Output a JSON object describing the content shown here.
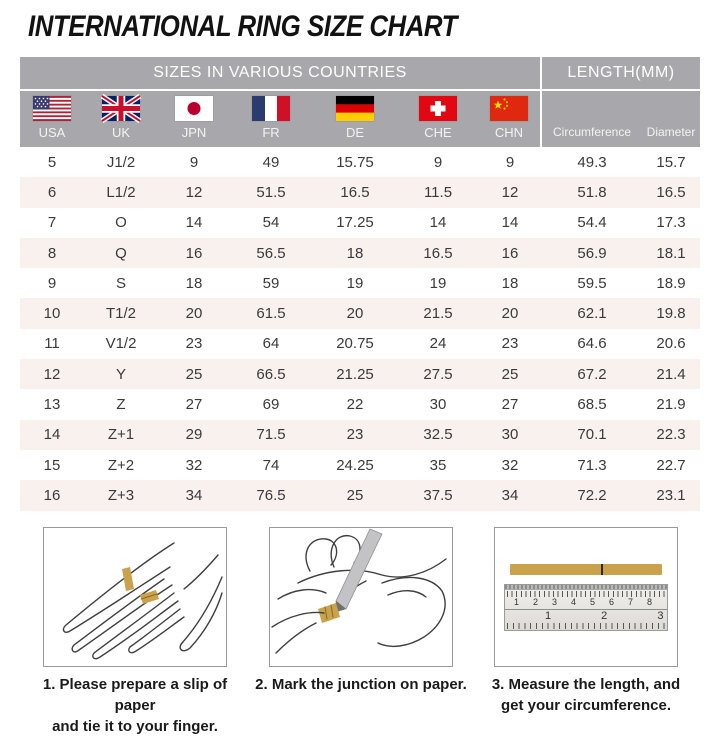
{
  "title": "INTERNATIONAL RING SIZE CHART",
  "table": {
    "header_left": "SIZES IN VARIOUS COUNTRIES",
    "header_right": "LENGTH(MM)",
    "columns": [
      {
        "label": "USA",
        "flag": "usa-flag"
      },
      {
        "label": "UK",
        "flag": "uk-flag"
      },
      {
        "label": "JPN",
        "flag": "japan-flag"
      },
      {
        "label": "FR",
        "flag": "france-flag"
      },
      {
        "label": "DE",
        "flag": "germany-flag"
      },
      {
        "label": "CHE",
        "flag": "switzerland-flag"
      },
      {
        "label": "CHN",
        "flag": "china-flag"
      }
    ],
    "length_columns": [
      {
        "label": "Circumference"
      },
      {
        "label": "Diameter"
      }
    ]
  },
  "chart_data": {
    "type": "table",
    "title": "INTERNATIONAL RING SIZE CHART",
    "columns": [
      "USA",
      "UK",
      "JPN",
      "FR",
      "DE",
      "CHE",
      "CHN",
      "Circumference",
      "Diameter"
    ],
    "rows": [
      [
        5,
        "J1/2",
        9,
        49,
        15.75,
        9,
        9,
        49.3,
        15.7
      ],
      [
        6,
        "L1/2",
        12,
        51.5,
        16.5,
        11.5,
        12,
        51.8,
        16.5
      ],
      [
        7,
        "O",
        14,
        54,
        17.25,
        14,
        14,
        54.4,
        17.3
      ],
      [
        8,
        "Q",
        16,
        56.5,
        18,
        16.5,
        16,
        56.9,
        18.1
      ],
      [
        9,
        "S",
        18,
        59,
        19,
        19,
        18,
        59.5,
        18.9
      ],
      [
        10,
        "T1/2",
        20,
        61.5,
        20,
        21.5,
        20,
        62.1,
        19.8
      ],
      [
        11,
        "V1/2",
        23,
        64,
        20.75,
        24,
        23,
        64.6,
        20.6
      ],
      [
        12,
        "Y",
        25,
        66.5,
        21.25,
        27.5,
        25,
        67.2,
        21.4
      ],
      [
        13,
        "Z",
        27,
        69,
        22,
        30,
        27,
        68.5,
        21.9
      ],
      [
        14,
        "Z+1",
        29,
        71.5,
        23,
        32.5,
        30,
        70.1,
        22.3
      ],
      [
        15,
        "Z+2",
        32,
        74,
        24.25,
        35,
        32,
        71.3,
        22.7
      ],
      [
        16,
        "Z+3",
        34,
        76.5,
        25,
        37.5,
        34,
        72.2,
        23.1
      ]
    ]
  },
  "instructions": {
    "steps": [
      {
        "caption": "1. Please prepare a slip of paper\nand tie it to your finger."
      },
      {
        "caption": "2. Mark the junction on paper."
      },
      {
        "caption": "3. Measure the length, and\nget your circumference."
      }
    ],
    "ruler": {
      "cm_labels": "1 2 3 4 5 6 7 8",
      "inch_labels": "1 2 3"
    }
  },
  "colors": {
    "header_bg": "#a8a8ac",
    "alt_row_bg": "#f8f1ee",
    "paper_strip_gold": "#c9a24b",
    "text_dark": "#3a3a3a"
  }
}
